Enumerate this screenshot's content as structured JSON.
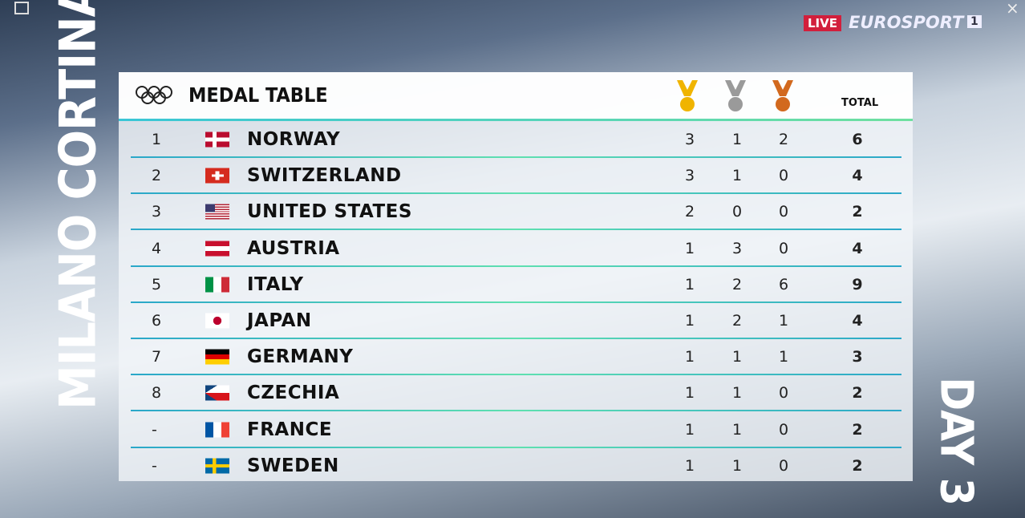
{
  "overlay": {
    "live": "LIVE",
    "channel": "EUROSPORT",
    "channel_number": "1",
    "vertical_left": "MILANO CORTINA",
    "vertical_right": "DAY 3"
  },
  "table": {
    "title": "MEDAL TABLE",
    "total_header": "TOTAL",
    "rows": [
      [
        "1",
        "NORWAY",
        3,
        1,
        2,
        6
      ],
      [
        "2",
        "SWITZERLAND",
        3,
        1,
        0,
        4
      ],
      [
        "3",
        "UNITED STATES",
        2,
        0,
        0,
        2
      ],
      [
        "4",
        "AUSTRIA",
        1,
        3,
        0,
        4
      ],
      [
        "5",
        "ITALY",
        1,
        2,
        6,
        9
      ],
      [
        "6",
        "JAPAN",
        1,
        2,
        1,
        4
      ],
      [
        "7",
        "GERMANY",
        1,
        1,
        1,
        3
      ],
      [
        "8",
        "CZECHIA",
        1,
        1,
        0,
        2
      ],
      [
        "-",
        "FRANCE",
        1,
        1,
        0,
        2
      ],
      [
        "-",
        "SWEDEN",
        1,
        1,
        0,
        2
      ]
    ]
  }
}
